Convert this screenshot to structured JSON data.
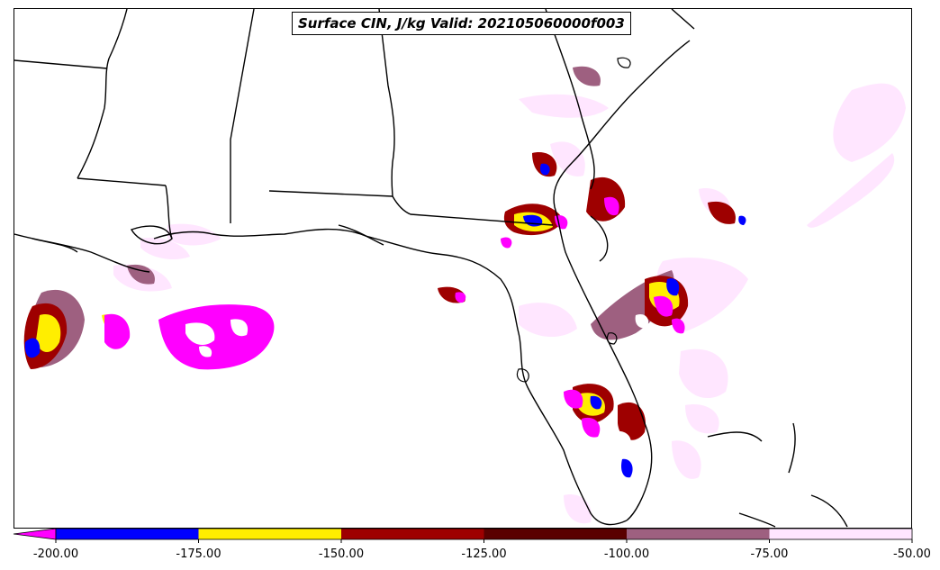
{
  "title": "Surface CIN, J/kg Valid: 202105060000f003",
  "colorbar": {
    "extend": "min",
    "under_color": "#ff00ff",
    "bins": [
      {
        "from": -200,
        "to": -175,
        "color": "#0000ff"
      },
      {
        "from": -175,
        "to": -150,
        "color": "#ffee00"
      },
      {
        "from": -150,
        "to": -125,
        "color": "#9e0000"
      },
      {
        "from": -125,
        "to": -100,
        "color": "#5a0000"
      },
      {
        "from": -100,
        "to": -75,
        "color": "#9e6080"
      },
      {
        "from": -75,
        "to": -50,
        "color": "#ffe6ff"
      }
    ],
    "ticks": [
      "-200.00",
      "-175.00",
      "-150.00",
      "-125.00",
      "-100.00",
      "-75.00",
      "-50.00"
    ]
  },
  "colors": {
    "state_borders": "#000000",
    "magenta": "#ff00ff",
    "blue": "#0000ff",
    "yellow": "#ffee00",
    "dark_red": "#9e0000",
    "maroon": "#5a0000",
    "mauve": "#9e6080",
    "pale_pink": "#ffe6ff"
  }
}
